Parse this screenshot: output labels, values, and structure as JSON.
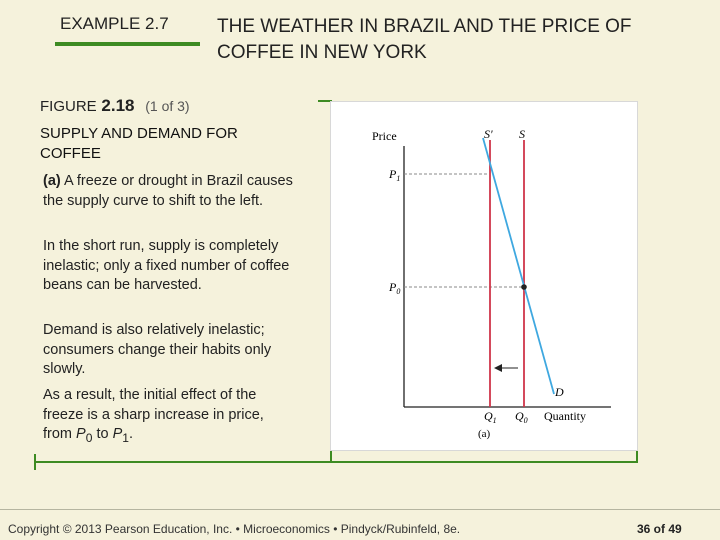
{
  "header": {
    "example_label": "EXAMPLE 2.7",
    "title": "THE WEATHER IN BRAZIL AND THE PRICE OF COFFEE IN NEW YORK"
  },
  "figure": {
    "label_word": "FIGURE",
    "label_number": "2.18",
    "part": "(1 of 3)",
    "subtitle": "SUPPLY AND DEMAND FOR COFFEE"
  },
  "paragraphs": {
    "a_tag": "(a)",
    "a_text": "A freeze or drought in Brazil causes the supply curve to shift to the left.",
    "b": "In the short run, supply is completely inelastic; only a fixed number of coffee beans can be harvested.",
    "c": "Demand is also relatively inelastic; consumers change their habits only slowly.",
    "d_prefix": "As a result, the initial effect of the freeze is a sharp increase in price, from ",
    "d_p0": "P",
    "d_p0_sub": "0",
    "d_mid": " to ",
    "d_p1": "P",
    "d_p1_sub": "1",
    "d_end": "."
  },
  "chart": {
    "y_axis_label": "Price",
    "x_axis_label": "Quantity",
    "p1": "P",
    "p1_sub": "1",
    "p0": "P",
    "p0_sub": "0",
    "q1": "Q",
    "q1_sub": "1",
    "q0": "Q",
    "q0_sub": "0",
    "s_prime": "S'",
    "s": "S",
    "d": "D",
    "panel_caption": "(a)",
    "colors": {
      "supply": "#d0354a",
      "demand": "#3fa8e0",
      "guide": "#888888"
    }
  },
  "chart_data": {
    "type": "line",
    "title": "",
    "xlabel": "Quantity",
    "ylabel": "Price",
    "series": [
      {
        "name": "S",
        "kind": "vertical supply",
        "x_label": "Q0"
      },
      {
        "name": "S'",
        "kind": "vertical supply",
        "x_label": "Q1"
      },
      {
        "name": "D",
        "kind": "downward-sloping demand"
      }
    ],
    "equilibria": [
      {
        "price": "P0",
        "quantity": "Q0"
      },
      {
        "price": "P1",
        "quantity": "Q1"
      }
    ],
    "shift": "S to S' (leftward)"
  },
  "footer": {
    "copyright": "Copyright © 2013 Pearson Education, Inc. • Microeconomics • Pindyck/Rubinfeld, 8e.",
    "page": "36 of 49"
  }
}
